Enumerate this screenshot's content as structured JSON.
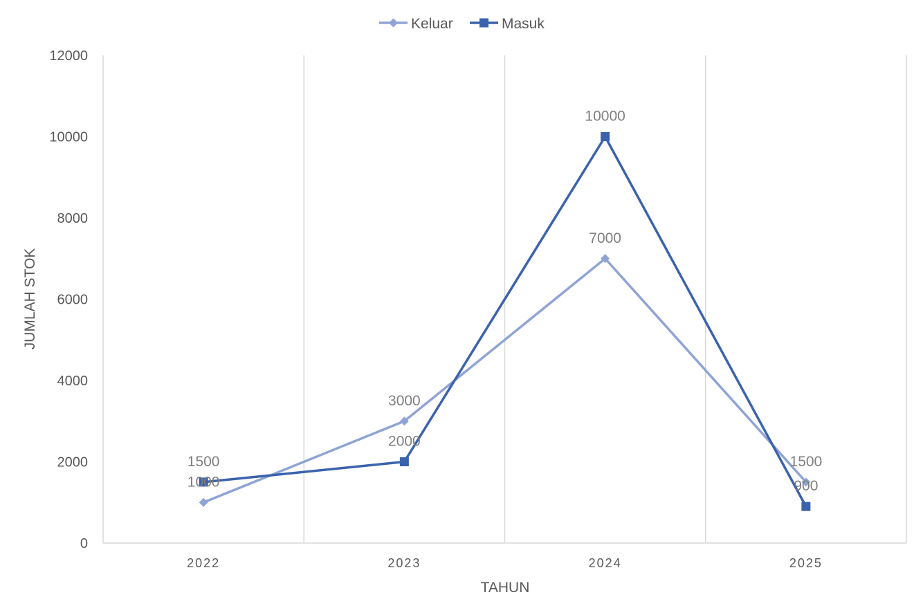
{
  "chart_data": {
    "type": "line",
    "categories": [
      "2022",
      "2023",
      "2024",
      "2025"
    ],
    "series": [
      {
        "name": "Keluar",
        "values": [
          1000,
          3000,
          7000,
          1500
        ],
        "color": "#8fa4d4",
        "marker": "diamond"
      },
      {
        "name": "Masuk",
        "values": [
          1500,
          2000,
          10000,
          900
        ],
        "color": "#3a62ad",
        "marker": "square"
      }
    ],
    "xlabel": "TAHUN",
    "ylabel": "JUMLAH STOK",
    "ylim": [
      0,
      12000
    ],
    "yticks": [
      "0",
      "2000",
      "4000",
      "6000",
      "8000",
      "10000",
      "12000"
    ],
    "grid": "vertical",
    "legend": "top-center",
    "data_labels": true
  }
}
